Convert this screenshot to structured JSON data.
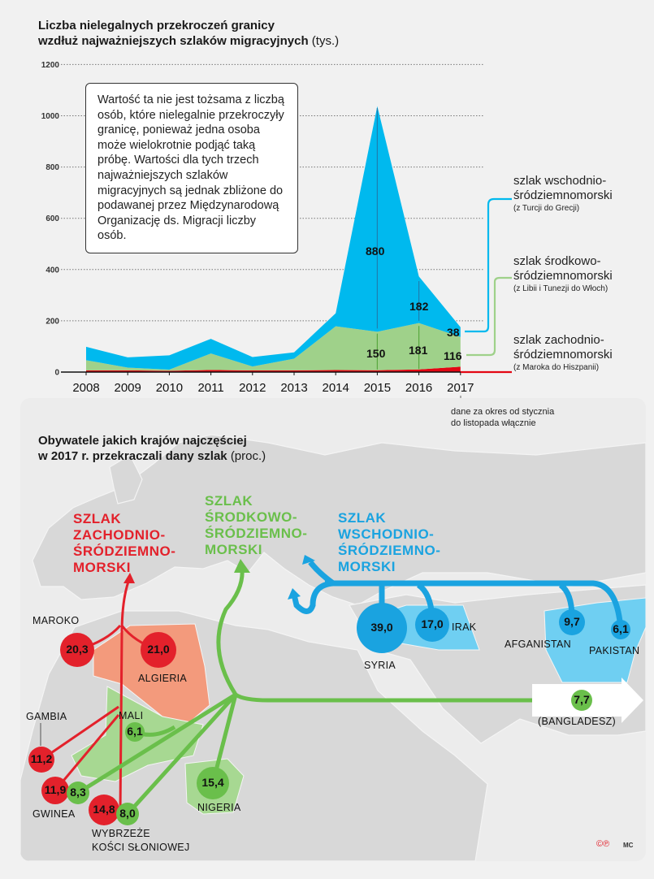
{
  "chart_data": {
    "type": "area",
    "stacked": true,
    "title": "Liczba nielegalnych przekroczeń granicy wzdłuż najważniejszych szlaków migracyjnych",
    "unit": "(tys.)",
    "categories": [
      "2008",
      "2009",
      "2010",
      "2011",
      "2012",
      "2013",
      "2014",
      "2015",
      "2016",
      "2017"
    ],
    "ylim": [
      0,
      1200
    ],
    "yticks": [
      "0",
      "200",
      "400",
      "600",
      "800",
      "1000",
      "1200"
    ],
    "grid": true,
    "series": [
      {
        "name": "szlak zachodnio-śródziemnomorski",
        "detail": "(z Maroka do Hiszpanii)",
        "color": "#e30613",
        "values": [
          6.5,
          6.6,
          5,
          8.4,
          6.4,
          6.8,
          7.8,
          7.2,
          10.2,
          21
        ]
      },
      {
        "name": "szlak środkowo-śródziemnomorski",
        "detail": "(z Libii i Tunezji do Włoch)",
        "color": "#9fd18a",
        "values": [
          39.8,
          11,
          4.5,
          64.3,
          15.2,
          45.3,
          170.7,
          150,
          181,
          116
        ]
      },
      {
        "name": "szlak wschodnio-śródziemnomorski",
        "detail": "(z Turcji do Grecji)",
        "color": "#00b9ee",
        "values": [
          52.3,
          39.9,
          55.7,
          57,
          37.2,
          24.8,
          50.8,
          880,
          182,
          38
        ]
      }
    ],
    "data_labels": {
      "2015_blue": "880",
      "2016_blue": "182",
      "2017_blue": "38",
      "2015_green": "150",
      "2016_green": "181",
      "2017_green": "116"
    },
    "annotation": "Wartość ta nie jest tożsama z liczbą osób, które nielegalnie przekroczyły granicę, ponieważ jedna osoba może wielokrotnie podjąć taką próbę. Wartości dla tych trzech najważniejszych szlaków migracyjnych są jednak zbliżone do podawanej przez Międzynarodową Organizację ds. Migracji liczby osób.",
    "footnote_line1": "dane za okres od stycznia",
    "footnote_line2": "do listopada włącznie"
  },
  "header": {
    "title_line1": "Liczba nielegalnych przekroczeń granicy",
    "title_line2": "wzdłuż najważniejszych szlaków migracyjnych",
    "unit": "(tys.)"
  },
  "legend": {
    "east": {
      "line1": "szlak wschodnio-",
      "line2": "śródziemnomorski",
      "sub": "(z Turcji do Grecji)"
    },
    "central": {
      "line1": "szlak środkowo-",
      "line2": "śródziemnomorski",
      "sub": "(z Libii i Tunezji do Włoch)"
    },
    "west": {
      "line1": "szlak zachodnio-",
      "line2": "śródziemnomorski",
      "sub": "(z Maroka do Hiszpanii)"
    }
  },
  "map": {
    "title_line1": "Obywatele jakich krajów najczęściej",
    "title_line2": "w 2017 r. przekraczali dany szlak",
    "unit": "(proc.)",
    "routes": {
      "west": [
        "SZLAK",
        "ZACHODNIO-",
        "ŚRÓDZIEMNO-",
        "MORSKI"
      ],
      "central": [
        "SZLAK",
        "ŚRODKOWO-",
        "ŚRÓDZIEMNO-",
        "MORSKI"
      ],
      "east": [
        "SZLAK",
        "WSCHODNIO-",
        "ŚRÓDZIEMNO-",
        "MORSKI"
      ]
    },
    "colors": {
      "west": "#e3212b",
      "central": "#6abf4b",
      "east": "#1aa3e0"
    },
    "bubbles": [
      {
        "country": "MAROKO",
        "route": "west",
        "value": "20,3"
      },
      {
        "country": "ALGIERIA",
        "route": "west",
        "value": "21,0"
      },
      {
        "country": "GAMBIA",
        "route": "west",
        "value": "11,2"
      },
      {
        "country": "GWINEA",
        "route": "west",
        "value": "11,9"
      },
      {
        "country": "GWINEA",
        "route": "central",
        "value": "8,3"
      },
      {
        "country": "WYBRZEŻE KOŚCI SŁONIOWEJ",
        "route": "west",
        "value": "14,8"
      },
      {
        "country": "WYBRZEŻE KOŚCI SŁONIOWEJ",
        "route": "central",
        "value": "8,0"
      },
      {
        "country": "MALI",
        "route": "central",
        "value": "6,1"
      },
      {
        "country": "NIGERIA",
        "route": "central",
        "value": "15,4"
      },
      {
        "country": "(BANGLADESZ)",
        "route": "central",
        "value": "7,7"
      },
      {
        "country": "SYRIA",
        "route": "east",
        "value": "39,0"
      },
      {
        "country": "IRAK",
        "route": "east",
        "value": "17,0"
      },
      {
        "country": "AFGANISTAN",
        "route": "east",
        "value": "9,7"
      },
      {
        "country": "PAKISTAN",
        "route": "east",
        "value": "6,1"
      }
    ],
    "labels": {
      "maroko": "MAROKO",
      "algieria": "ALGIERIA",
      "gambia": "GAMBIA",
      "mali": "MALI",
      "gwinea": "GWINEA",
      "nigeria": "NIGERIA",
      "wks1": "WYBRZEŻE",
      "wks2": "KOŚCI SŁONIOWEJ",
      "syria": "SYRIA",
      "irak": "IRAK",
      "afganistan": "AFGANISTAN",
      "pakistan": "PAKISTAN",
      "bangladesz": "(BANGLADESZ)"
    },
    "credit": "MC"
  }
}
